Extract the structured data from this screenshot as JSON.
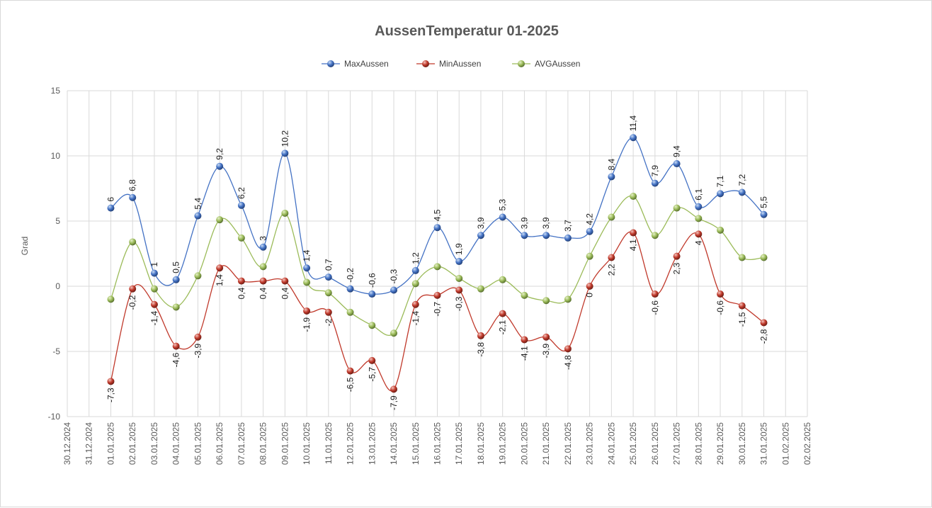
{
  "chart_data": {
    "type": "line",
    "title": "AussenTemperatur 01-2025",
    "ylabel": "Grad",
    "xlabel": "",
    "ylim": [
      -10,
      15
    ],
    "yticks": [
      15,
      10,
      5,
      0,
      -5,
      -10
    ],
    "grid": true,
    "legend_position": "top",
    "x_ticks": [
      "30.12.2024",
      "31.12.2024",
      "01.01.2025",
      "02.01.2025",
      "03.01.2025",
      "04.01.2025",
      "05.01.2025",
      "06.01.2025",
      "07.01.2025",
      "08.01.2025",
      "09.01.2025",
      "10.01.2025",
      "11.01.2025",
      "12.01.2025",
      "13.01.2025",
      "14.01.2025",
      "15.01.2025",
      "16.01.2025",
      "17.01.2025",
      "18.01.2025",
      "19.01.2025",
      "20.01.2025",
      "21.01.2025",
      "22.01.2025",
      "23.01.2025",
      "24.01.2025",
      "25.01.2025",
      "26.01.2025",
      "27.01.2025",
      "28.01.2025",
      "29.01.2025",
      "30.01.2025",
      "31.01.2025",
      "01.02.2025",
      "02.02.2025"
    ],
    "series": [
      {
        "name": "MaxAussen",
        "color": "#4472C4",
        "start_index": 2,
        "values": [
          6.0,
          6.8,
          1.0,
          0.5,
          5.4,
          9.2,
          6.2,
          3.0,
          10.2,
          1.4,
          0.7,
          -0.2,
          -0.6,
          -0.3,
          1.2,
          4.5,
          1.9,
          3.9,
          5.3,
          3.9,
          3.9,
          3.7,
          4.2,
          8.4,
          11.4,
          7.9,
          9.4,
          6.1,
          7.1,
          7.2,
          5.5
        ],
        "labels": [
          "6",
          "6,8",
          "1",
          "0,5",
          "5,4",
          "9,2",
          "6,2",
          "3",
          "10,2",
          "1,4",
          "0,7",
          "-0,2",
          "-0,6",
          "-0,3",
          "1,2",
          "4,5",
          "1,9",
          "3,9",
          "5,3",
          "3,9",
          "3,9",
          "3,7",
          "4,2",
          "8,4",
          "11,4",
          "7,9",
          "9,4",
          "6,1",
          "7,1",
          "7,2",
          "5,5"
        ],
        "label_side": "above"
      },
      {
        "name": "MinAussen",
        "color": "#C0392B",
        "start_index": 2,
        "values": [
          -7.3,
          -0.2,
          -1.4,
          -4.6,
          -3.9,
          1.4,
          0.4,
          0.4,
          0.4,
          -1.9,
          -2.0,
          -6.5,
          -5.7,
          -7.9,
          -1.4,
          -0.7,
          -0.3,
          -3.8,
          -2.1,
          -4.1,
          -3.9,
          -4.8,
          0.0,
          2.2,
          4.1,
          -0.6,
          2.3,
          4.0,
          -0.6,
          -1.5,
          -2.8
        ],
        "labels": [
          "-7,3",
          "-0,2",
          "-1,4",
          "-4,6",
          "-3,9",
          "1,4",
          "0,4",
          "0,4",
          "0,4",
          "-1,9",
          "-2",
          "-6,5",
          "-5,7",
          "-7,9",
          "-1,4",
          "-0,7",
          "-0,3",
          "-3,8",
          "-2,1",
          "-4,1",
          "-3,9",
          "-4,8",
          "0",
          "2,2",
          "4,1",
          "-0,6",
          "2,3",
          "4",
          "-0,6",
          "-1,5",
          "-2,8"
        ],
        "label_side": "below"
      },
      {
        "name": "AVGAussen",
        "color": "#9BBB59",
        "start_index": 2,
        "values": [
          -1.0,
          3.4,
          -0.2,
          -1.6,
          0.8,
          5.1,
          3.7,
          1.5,
          5.6,
          0.3,
          -0.5,
          -2.0,
          -3.0,
          -3.6,
          0.2,
          1.5,
          0.6,
          -0.2,
          0.5,
          -0.7,
          -1.1,
          -1.0,
          2.3,
          5.3,
          6.9,
          3.9,
          6.0,
          5.2,
          4.3,
          2.2,
          2.2
        ],
        "labels": [],
        "label_side": "none"
      }
    ]
  }
}
